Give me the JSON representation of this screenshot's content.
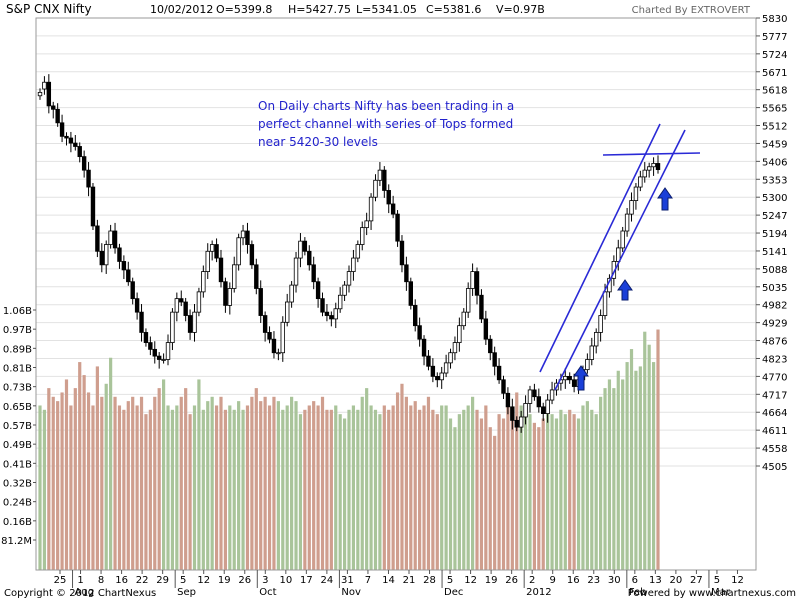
{
  "header": {
    "symbol": "S&P CNX Nifty",
    "date": "10/02/2012",
    "open": "O=5399.8",
    "high": "H=5427.75",
    "low": "L=5341.05",
    "close": "C=5381.6",
    "volume": "V=0.97B",
    "credit": "Charted By EXTROVERT"
  },
  "annotation": [
    "On Daily charts Nifty has been trading in a",
    "perfect channel with series of Tops formed",
    "near 5420-30 levels"
  ],
  "footer": {
    "copyright": "Copyright © 2012 ChartNexus",
    "powered": "Powered by www.chartnexus.com"
  },
  "colors": {
    "candle": "#000000",
    "volume_up": "#a9c49a",
    "volume_down": "#cf9e8e",
    "channel": "#2a2ad6",
    "arrow": "#1a3fd8",
    "annotation": "#2222cc",
    "grid": "#e2e2e2"
  },
  "chart_data": {
    "type": "candlestick",
    "price_axis_ticks": [
      "5830",
      "5777",
      "5724",
      "5671",
      "5618",
      "5565",
      "5512",
      "5459",
      "5406",
      "5353",
      "5300",
      "5247",
      "5194",
      "5141",
      "5088",
      "5035",
      "4982",
      "4929",
      "4876",
      "4823",
      "4770",
      "4717",
      "4664",
      "4611",
      "4558",
      "4505"
    ],
    "volume_axis_ticks": [
      "1.06B",
      "0.97B",
      "0.89B",
      "0.81B",
      "0.73B",
      "0.65B",
      "0.57B",
      "0.49B",
      "0.41B",
      "0.32B",
      "0.24B",
      "0.16B",
      "81.2M"
    ],
    "x_day_ticks": [
      "25",
      "1",
      "8",
      "16",
      "22",
      "29",
      "5",
      "12",
      "19",
      "26",
      "3",
      "10",
      "17",
      "24",
      "31",
      "7",
      "14",
      "21",
      "28",
      "5",
      "12",
      "19",
      "26",
      "2",
      "9",
      "16",
      "23",
      "30",
      "6",
      "13",
      "20",
      "27",
      "5",
      "12"
    ],
    "x_month_labels": [
      "Aug",
      "Sep",
      "Oct",
      "Nov",
      "Dec",
      "2012",
      "Feb",
      "Mar"
    ],
    "price_range": [
      4452,
      5830
    ],
    "volume_range": [
      0,
      1.1
    ],
    "closes": [
      5610,
      5640,
      5570,
      5560,
      5520,
      5480,
      5475,
      5460,
      5450,
      5420,
      5380,
      5330,
      5215,
      5140,
      5100,
      5160,
      5200,
      5150,
      5110,
      5085,
      5050,
      5000,
      4960,
      4900,
      4870,
      4850,
      4830,
      4820,
      4820,
      4870,
      4960,
      5000,
      4990,
      4950,
      4900,
      4960,
      5020,
      5080,
      5140,
      5160,
      5120,
      5050,
      4980,
      5030,
      5100,
      5180,
      5200,
      5160,
      5100,
      5030,
      4950,
      4900,
      4880,
      4840,
      4840,
      4930,
      4990,
      5040,
      5120,
      5170,
      5140,
      5100,
      5050,
      5000,
      4960,
      4950,
      4940,
      4970,
      5010,
      5040,
      5080,
      5120,
      5160,
      5210,
      5230,
      5300,
      5350,
      5380,
      5320,
      5280,
      5250,
      5170,
      5100,
      5050,
      4980,
      4920,
      4880,
      4830,
      4800,
      4770,
      4760,
      4780,
      4810,
      4840,
      4870,
      4920,
      4960,
      5030,
      5080,
      5010,
      4940,
      4880,
      4840,
      4800,
      4760,
      4720,
      4680,
      4640,
      4620,
      4650,
      4690,
      4730,
      4710,
      4680,
      4660,
      4700,
      4730,
      4750,
      4760,
      4770,
      4760,
      4740,
      4760,
      4790,
      4820,
      4860,
      4900,
      4950,
      5020,
      5060,
      5110,
      5150,
      5200,
      5250,
      5290,
      5330,
      5360,
      5380,
      5390,
      5400,
      5381.6
    ],
    "opens": [
      5600,
      5620,
      5640,
      5570,
      5560,
      5520,
      5480,
      5475,
      5460,
      5450,
      5420,
      5380,
      5330,
      5215,
      5140,
      5100,
      5160,
      5200,
      5150,
      5110,
      5085,
      5050,
      5000,
      4960,
      4900,
      4870,
      4850,
      4830,
      4820,
      4820,
      4870,
      4960,
      5000,
      4990,
      4950,
      4900,
      4960,
      5020,
      5080,
      5140,
      5160,
      5120,
      5050,
      4980,
      5030,
      5100,
      5180,
      5200,
      5160,
      5100,
      5030,
      4950,
      4900,
      4880,
      4840,
      4840,
      4930,
      4990,
      5040,
      5120,
      5170,
      5140,
      5100,
      5050,
      5000,
      4960,
      4950,
      4940,
      4970,
      5010,
      5040,
      5080,
      5120,
      5160,
      5210,
      5230,
      5300,
      5350,
      5380,
      5320,
      5280,
      5250,
      5170,
      5100,
      5050,
      4980,
      4920,
      4880,
      4830,
      4800,
      4770,
      4760,
      4780,
      4810,
      4840,
      4870,
      4920,
      4960,
      5030,
      5080,
      5010,
      4940,
      4880,
      4840,
      4800,
      4760,
      4720,
      4680,
      4640,
      4620,
      4650,
      4690,
      4730,
      4710,
      4680,
      4660,
      4700,
      4730,
      4750,
      4760,
      4770,
      4760,
      4740,
      4760,
      4790,
      4820,
      4860,
      4900,
      4950,
      5020,
      5060,
      5110,
      5150,
      5200,
      5250,
      5290,
      5330,
      5360,
      5380,
      5390,
      5399.8
    ],
    "volumes": [
      0.62,
      0.6,
      0.7,
      0.66,
      0.64,
      0.68,
      0.74,
      0.62,
      0.7,
      0.82,
      0.76,
      0.68,
      0.62,
      0.8,
      0.66,
      0.72,
      0.84,
      0.66,
      0.62,
      0.6,
      0.64,
      0.66,
      0.62,
      0.66,
      0.58,
      0.6,
      0.66,
      0.7,
      0.74,
      0.62,
      0.6,
      0.62,
      0.66,
      0.7,
      0.58,
      0.62,
      0.74,
      0.6,
      0.64,
      0.66,
      0.62,
      0.66,
      0.6,
      0.62,
      0.6,
      0.64,
      0.6,
      0.62,
      0.66,
      0.7,
      0.64,
      0.66,
      0.62,
      0.66,
      0.64,
      0.6,
      0.62,
      0.66,
      0.64,
      0.58,
      0.6,
      0.62,
      0.64,
      0.62,
      0.66,
      0.6,
      0.6,
      0.62,
      0.58,
      0.56,
      0.6,
      0.62,
      0.6,
      0.66,
      0.7,
      0.62,
      0.6,
      0.58,
      0.62,
      0.6,
      0.62,
      0.68,
      0.72,
      0.66,
      0.62,
      0.64,
      0.6,
      0.62,
      0.66,
      0.6,
      0.58,
      0.62,
      0.62,
      0.56,
      0.52,
      0.58,
      0.6,
      0.62,
      0.66,
      0.6,
      0.56,
      0.62,
      0.52,
      0.48,
      0.58,
      0.56,
      0.66,
      0.6,
      0.68,
      0.62,
      0.6,
      0.58,
      0.54,
      0.52,
      0.56,
      0.6,
      0.58,
      0.56,
      0.6,
      0.58,
      0.6,
      0.58,
      0.56,
      0.62,
      0.64,
      0.6,
      0.58,
      0.66,
      0.7,
      0.74,
      0.7,
      0.78,
      0.74,
      0.82,
      0.88,
      0.78,
      0.8,
      0.96,
      0.9,
      0.82,
      0.97
    ]
  }
}
